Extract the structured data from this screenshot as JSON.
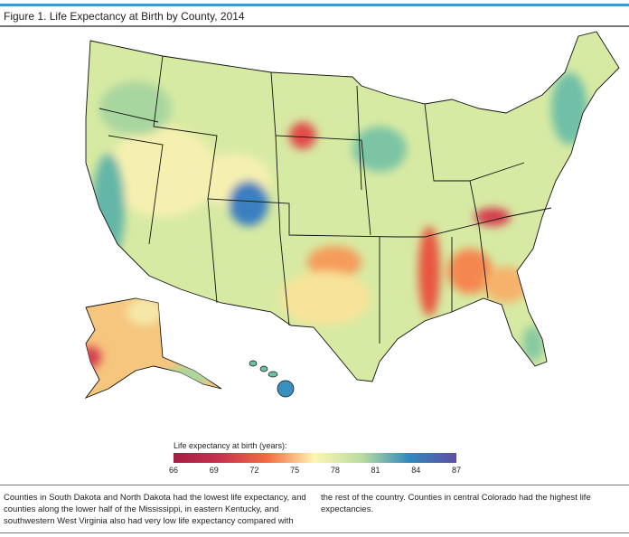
{
  "title": "Figure 1. Life Expectancy at Birth by County, 2014",
  "legend": {
    "label": "Life expectancy at birth (years):",
    "ticks": [
      "66",
      "69",
      "72",
      "75",
      "78",
      "81",
      "84",
      "87"
    ],
    "range": [
      66,
      87
    ],
    "colors": [
      "#a51d44",
      "#c8324e",
      "#f46d43",
      "#fdf6b4",
      "#b8dca0",
      "#3288bd",
      "#5e4fa2"
    ]
  },
  "caption": {
    "left": "Counties in South Dakota and North Dakota had the lowest life expectancy, and counties along the lower half of the Mississippi, in eastern Kentucky, and southwestern West Virginia also had very low life expectancy compared with",
    "right": "the rest of the country. Counties in central Colorado had the highest life expectancies."
  }
}
